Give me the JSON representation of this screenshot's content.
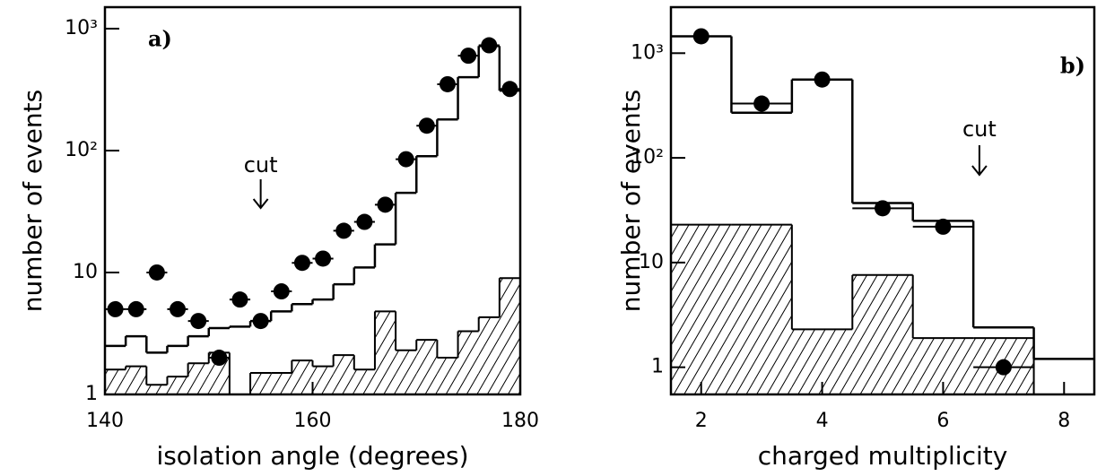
{
  "chart_data": [
    {
      "type": "histogram",
      "x_label": "isolation angle (degrees)",
      "y_label": "number of events",
      "panel_label": "a)",
      "log_y": true,
      "xlim": [
        140,
        180
      ],
      "xticks": [
        140,
        160,
        180
      ],
      "ylim": [
        1,
        1500
      ],
      "yticks": [
        1,
        10,
        {
          "value": 100,
          "label": "10²"
        },
        {
          "value": 1000,
          "label": "10³"
        }
      ],
      "bins": [
        140,
        142,
        144,
        146,
        148,
        150,
        152,
        154,
        156,
        158,
        160,
        162,
        164,
        166,
        168,
        170,
        172,
        174,
        176,
        178,
        180
      ],
      "cut": {
        "label": "cut",
        "value": 155
      },
      "series": [
        {
          "style": "hatched",
          "color": "#000000",
          "values": [
            1.6,
            1.7,
            1.2,
            1.4,
            1.8,
            2.2,
            1,
            1.5,
            1.5,
            1.9,
            1.7,
            2.1,
            1.6,
            4.8,
            2.3,
            2.8,
            2,
            3.3,
            4.3,
            9
          ]
        },
        {
          "style": "step",
          "color": "#000000",
          "values": [
            2.5,
            3,
            2.2,
            2.5,
            3,
            3.5,
            3.6,
            4,
            4.8,
            5.5,
            6,
            8,
            11,
            17,
            45,
            90,
            180,
            400,
            720,
            310
          ]
        },
        {
          "style": "points",
          "color": "#000000",
          "values": [
            5,
            5,
            10,
            5,
            4,
            2,
            6,
            4,
            7,
            12,
            13,
            22,
            26,
            36,
            85,
            160,
            350,
            600,
            730,
            320
          ]
        }
      ]
    },
    {
      "type": "histogram",
      "x_label": "charged multiplicity",
      "y_label": "number of events",
      "panel_label": "b)",
      "log_y": true,
      "xlim": [
        1.5,
        8.5
      ],
      "xticks": [
        2,
        4,
        6,
        8
      ],
      "ylim": [
        0.55,
        2750
      ],
      "yticks": [
        1,
        10,
        {
          "value": 100,
          "label": "10²"
        },
        {
          "value": 1000,
          "label": "10³"
        }
      ],
      "bins": [
        1.5,
        2.5,
        3.5,
        4.5,
        5.5,
        6.5,
        7.5,
        8.5
      ],
      "cut": {
        "label": "cut",
        "value": 6.6
      },
      "series": [
        {
          "style": "hatched",
          "color": "#000000",
          "values": [
            23,
            23,
            2.3,
            7.6,
            1.9,
            1.9,
            0.53
          ]
        },
        {
          "style": "step",
          "color": "#000000",
          "values": [
            1450,
            270,
            560,
            37,
            25,
            2.4,
            1.2
          ]
        },
        {
          "style": "points",
          "color": "#000000",
          "values": [
            1450,
            330,
            560,
            33,
            22,
            1,
            null
          ]
        }
      ]
    }
  ]
}
